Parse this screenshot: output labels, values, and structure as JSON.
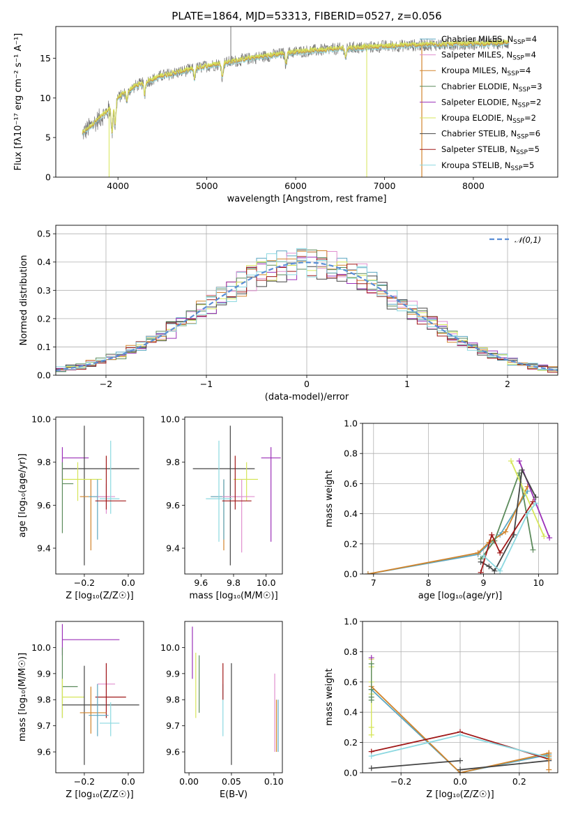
{
  "figure": {
    "title": "PLATE=1864, MJD=53313, FIBERID=0527, z=0.056"
  },
  "legend_entries": [
    {
      "label": "Chabrier MILES, N",
      "sub": "SSP",
      "eq": "=4",
      "color": "#5aa6c0"
    },
    {
      "label": "Salpeter MILES, N",
      "sub": "SSP",
      "eq": "=4",
      "color": "#e08fcf"
    },
    {
      "label": "Kroupa MILES, N",
      "sub": "SSP",
      "eq": "=4",
      "color": "#d2842c"
    },
    {
      "label": "Chabrier ELODIE, N",
      "sub": "SSP",
      "eq": "=3",
      "color": "#5b8a5b"
    },
    {
      "label": "Salpeter ELODIE, N",
      "sub": "SSP",
      "eq": "=2",
      "color": "#9b30b8"
    },
    {
      "label": "Kroupa ELODIE, N",
      "sub": "SSP",
      "eq": "=2",
      "color": "#d6e65a"
    },
    {
      "label": "Chabrier STELIB, N",
      "sub": "SSP",
      "eq": "=6",
      "color": "#444444"
    },
    {
      "label": "Salpeter STELIB, N",
      "sub": "SSP",
      "eq": "=5",
      "color": "#a01818"
    },
    {
      "label": "Kroupa STELIB, N",
      "sub": "SSP",
      "eq": "=5",
      "color": "#8bd8e0"
    }
  ],
  "chart_data": [
    {
      "id": "spectrum",
      "type": "line",
      "xlabel": "wavelength [Angstrom, rest frame]",
      "ylabel": "Flux [fλ10⁻¹⁷ erg cm⁻² s⁻¹ A⁻¹]",
      "xlim": [
        3300,
        8950
      ],
      "ylim": [
        0,
        19
      ],
      "xticks": [
        4000,
        5000,
        6000,
        7000,
        8000
      ],
      "yticks": [
        0,
        5,
        10,
        15
      ],
      "data_range": [
        3600,
        8400
      ],
      "data_color": "#777777",
      "model_colors": [
        "#8bd8e0",
        "#d2842c",
        "#d6e65a"
      ],
      "continuum": [
        [
          3600,
          5.5
        ],
        [
          3700,
          6.5
        ],
        [
          3800,
          7.5
        ],
        [
          3900,
          8.5
        ],
        [
          4000,
          10.0
        ],
        [
          4200,
          11.5
        ],
        [
          4500,
          12.8
        ],
        [
          5000,
          14.0
        ],
        [
          5500,
          15.0
        ],
        [
          6000,
          15.8
        ],
        [
          6500,
          16.2
        ],
        [
          7000,
          16.5
        ],
        [
          7500,
          16.7
        ],
        [
          8000,
          16.8
        ],
        [
          8400,
          16.9
        ]
      ],
      "grid": false
    },
    {
      "id": "residuals",
      "type": "step",
      "xlabel": "(data-model)/error",
      "ylabel": "Normed distribution",
      "xlim": [
        -2.5,
        2.5
      ],
      "ylim": [
        0,
        0.53
      ],
      "xticks": [
        -2,
        -1,
        0,
        1,
        2
      ],
      "yticks": [
        0.0,
        0.1,
        0.2,
        0.3,
        0.4,
        0.5
      ],
      "bin_width": 0.1,
      "reference": {
        "name": "𝒩(0,1)",
        "color": "#5b8ed6"
      },
      "legend": "top-right",
      "grid": true
    },
    {
      "id": "z_age",
      "type": "errorbar",
      "xlabel": "Z [log₁₀(Z/Z☉)]",
      "ylabel": "age  [log₁₀(age/yr)]",
      "xlim": [
        -0.33,
        0.07
      ],
      "ylim": [
        9.28,
        10.01
      ],
      "xticks": [
        -0.2,
        0.0
      ],
      "yticks": [
        9.4,
        9.6,
        9.8,
        10.0
      ],
      "points": [
        {
          "x": -0.3,
          "xe": [
            0.0,
            0.12
          ],
          "y": 9.82,
          "ye": [
            0.1,
            0.05
          ],
          "color": "#9b30b8"
        },
        {
          "x": -0.2,
          "xe": [
            0.1,
            0.25
          ],
          "y": 9.77,
          "ye": [
            0.45,
            0.2
          ],
          "color": "#444444"
        },
        {
          "x": -0.23,
          "xe": [
            0.07,
            0.11
          ],
          "y": 9.72,
          "ye": [
            0.1,
            0.08
          ],
          "color": "#d6e65a"
        },
        {
          "x": -0.3,
          "xe": [
            0.0,
            0.05
          ],
          "y": 9.7,
          "ye": [
            0.23,
            0.1
          ],
          "color": "#5b8a5b"
        },
        {
          "x": -0.17,
          "xe": [
            0.05,
            0.07
          ],
          "y": 9.64,
          "ye": [
            0.25,
            0.08
          ],
          "color": "#d2842c"
        },
        {
          "x": -0.14,
          "xe": [
            0.04,
            0.05
          ],
          "y": 9.64,
          "ye": [
            0.2,
            0.08
          ],
          "color": "#5aa6c0"
        },
        {
          "x": -0.1,
          "xe": [
            0.04,
            0.04
          ],
          "y": 9.64,
          "ye": [
            0.08,
            0.06
          ],
          "color": "#e08fcf"
        },
        {
          "x": -0.08,
          "xe": [
            0.05,
            0.04
          ],
          "y": 9.63,
          "ye": [
            0.07,
            0.27
          ],
          "color": "#8bd8e0"
        },
        {
          "x": -0.1,
          "xe": [
            0.05,
            0.09
          ],
          "y": 9.62,
          "ye": [
            0.04,
            0.21
          ],
          "color": "#a01818"
        }
      ]
    },
    {
      "id": "mass_age",
      "type": "errorbar",
      "xlabel": "mass [log₁₀(M/M☉)]",
      "ylabel": "",
      "xlim": [
        9.5,
        10.1
      ],
      "ylim": [
        9.28,
        10.01
      ],
      "xticks": [
        9.6,
        9.8,
        10.0
      ],
      "yticks": [
        9.4,
        9.6,
        9.8,
        10.0
      ],
      "points": [
        {
          "x": 10.03,
          "xe": [
            0.06,
            0.06
          ],
          "y": 9.82,
          "ye": [
            0.39,
            0.05
          ],
          "color": "#9b30b8"
        },
        {
          "x": 9.78,
          "xe": [
            0.23,
            0.15
          ],
          "y": 9.77,
          "ye": [
            0.45,
            0.2
          ],
          "color": "#444444"
        },
        {
          "x": 9.88,
          "xe": [
            0.08,
            0.07
          ],
          "y": 9.72,
          "ye": [
            0.1,
            0.08
          ],
          "color": "#d6e65a"
        },
        {
          "x": 9.74,
          "xe": [
            0.08,
            0.1
          ],
          "y": 9.64,
          "ye": [
            0.25,
            0.08
          ],
          "color": "#d2842c"
        },
        {
          "x": 9.74,
          "xe": [
            0.08,
            0.12
          ],
          "y": 9.64,
          "ye": [
            0.2,
            0.08
          ],
          "color": "#5aa6c0"
        },
        {
          "x": 9.85,
          "xe": [
            0.12,
            0.08
          ],
          "y": 9.64,
          "ye": [
            0.26,
            0.08
          ],
          "color": "#e08fcf"
        },
        {
          "x": 9.71,
          "xe": [
            0.08,
            0.08
          ],
          "y": 9.63,
          "ye": [
            0.2,
            0.27
          ],
          "color": "#8bd8e0"
        },
        {
          "x": 9.81,
          "xe": [
            0.08,
            0.1
          ],
          "y": 9.62,
          "ye": [
            0.04,
            0.21
          ],
          "color": "#a01818"
        }
      ]
    },
    {
      "id": "age_massweight",
      "type": "line",
      "xlabel": "age  [log₁₀(age/yr)]",
      "ylabel": "mass weight",
      "xlim": [
        6.8,
        10.35
      ],
      "ylim": [
        0,
        1.0
      ],
      "xticks": [
        7,
        8,
        9,
        10
      ],
      "yticks": [
        0.0,
        0.2,
        0.4,
        0.6,
        0.8,
        1.0
      ],
      "grid": true,
      "series": [
        {
          "color": "#5aa6c0",
          "points": [
            [
              6.9,
              0.0
            ],
            [
              8.9,
              0.13
            ],
            [
              9.1,
              0.2
            ],
            [
              9.3,
              0.26
            ],
            [
              9.8,
              0.55
            ]
          ]
        },
        {
          "color": "#d2842c",
          "points": [
            [
              6.9,
              0.0
            ],
            [
              8.9,
              0.14
            ],
            [
              9.1,
              0.21
            ],
            [
              9.4,
              0.28
            ],
            [
              9.8,
              0.58
            ]
          ]
        },
        {
          "color": "#5b8a5b",
          "points": [
            [
              8.95,
              0.1
            ],
            [
              9.2,
              0.22
            ],
            [
              9.65,
              0.67
            ],
            [
              9.9,
              0.16
            ]
          ]
        },
        {
          "color": "#9b30b8",
          "points": [
            [
              9.65,
              0.75
            ],
            [
              10.2,
              0.24
            ]
          ]
        },
        {
          "color": "#d6e65a",
          "points": [
            [
              9.5,
              0.75
            ],
            [
              10.1,
              0.25
            ]
          ]
        },
        {
          "color": "#444444",
          "points": [
            [
              8.95,
              0.08
            ],
            [
              9.1,
              0.05
            ],
            [
              9.2,
              0.02
            ],
            [
              9.55,
              0.26
            ],
            [
              9.7,
              0.69
            ],
            [
              9.95,
              0.51
            ]
          ]
        },
        {
          "color": "#a01818",
          "points": [
            [
              8.95,
              0.01
            ],
            [
              9.15,
              0.26
            ],
            [
              9.3,
              0.14
            ],
            [
              9.9,
              0.48
            ]
          ]
        },
        {
          "color": "#8bd8e0",
          "points": [
            [
              9.0,
              0.12
            ],
            [
              9.3,
              0.02
            ],
            [
              9.8,
              0.4
            ],
            [
              9.95,
              0.47
            ]
          ]
        }
      ]
    },
    {
      "id": "z_mass",
      "type": "errorbar",
      "xlabel": "Z [log₁₀(Z/Z☉)]",
      "ylabel": "mass [log₁₀(M/M☉)]",
      "xlim": [
        -0.33,
        0.07
      ],
      "ylim": [
        9.52,
        10.1
      ],
      "xticks": [
        -0.2,
        0.0
      ],
      "yticks": [
        9.6,
        9.7,
        9.8,
        9.9,
        10.0
      ],
      "points": [
        {
          "x": -0.3,
          "xe": [
            0.0,
            0.26
          ],
          "y": 10.03,
          "ye": [
            0.06,
            0.06
          ],
          "color": "#9b30b8"
        },
        {
          "x": -0.3,
          "xe": [
            0.0,
            0.07
          ],
          "y": 9.85,
          "ye": [
            0.12,
            0.15
          ],
          "color": "#5b8a5b"
        },
        {
          "x": -0.3,
          "xe": [
            0.0,
            0.1
          ],
          "y": 9.81,
          "ye": [
            0.08,
            0.07
          ],
          "color": "#d6e65a"
        },
        {
          "x": -0.2,
          "xe": [
            0.1,
            0.25
          ],
          "y": 9.78,
          "ye": [
            0.23,
            0.15
          ],
          "color": "#444444"
        },
        {
          "x": -0.1,
          "xe": [
            0.04,
            0.04
          ],
          "y": 9.86,
          "ye": [
            0.12,
            0.08
          ],
          "color": "#e08fcf"
        },
        {
          "x": -0.1,
          "xe": [
            0.05,
            0.09
          ],
          "y": 9.81,
          "ye": [
            0.08,
            0.13
          ],
          "color": "#a01818"
        },
        {
          "x": -0.17,
          "xe": [
            0.05,
            0.07
          ],
          "y": 9.75,
          "ye": [
            0.08,
            0.1
          ],
          "color": "#d2842c"
        },
        {
          "x": -0.14,
          "xe": [
            0.04,
            0.05
          ],
          "y": 9.74,
          "ye": [
            0.08,
            0.12
          ],
          "color": "#5aa6c0"
        },
        {
          "x": -0.08,
          "xe": [
            0.05,
            0.04
          ],
          "y": 9.71,
          "ye": [
            0.05,
            0.08
          ],
          "color": "#8bd8e0"
        }
      ]
    },
    {
      "id": "ebv_mass",
      "type": "errorbar",
      "xlabel": "E(B-V)",
      "ylabel": "",
      "xlim": [
        -0.005,
        0.11
      ],
      "ylim": [
        9.52,
        10.1
      ],
      "xticks": [
        0.0,
        0.05,
        0.1
      ],
      "yticks": [
        9.6,
        9.7,
        9.8,
        9.9,
        10.0
      ],
      "points": [
        {
          "x": 0.004,
          "xe": [
            0,
            0
          ],
          "y": 9.98,
          "ye": [
            0.1,
            0.1
          ],
          "color": "#9b30b8"
        },
        {
          "x": 0.008,
          "xe": [
            0,
            0
          ],
          "y": 9.85,
          "ye": [
            0.12,
            0.13
          ],
          "color": "#d6e65a"
        },
        {
          "x": 0.012,
          "xe": [
            0,
            0
          ],
          "y": 9.85,
          "ye": [
            0.1,
            0.12
          ],
          "color": "#5b8a5b"
        },
        {
          "x": 0.04,
          "xe": [
            0,
            0
          ],
          "y": 9.76,
          "ye": [
            0.1,
            0.1
          ],
          "color": "#8bd8e0"
        },
        {
          "x": 0.04,
          "xe": [
            0,
            0
          ],
          "y": 9.86,
          "ye": [
            0.06,
            0.08
          ],
          "color": "#a01818"
        },
        {
          "x": 0.05,
          "xe": [
            0,
            0
          ],
          "y": 9.75,
          "ye": [
            0.2,
            0.19
          ],
          "color": "#444444"
        },
        {
          "x": 0.101,
          "xe": [
            0,
            0
          ],
          "y": 9.75,
          "ye": [
            0.15,
            0.15
          ],
          "color": "#e08fcf"
        },
        {
          "x": 0.103,
          "xe": [
            0,
            0
          ],
          "y": 9.7,
          "ye": [
            0.1,
            0.1
          ],
          "color": "#d2842c"
        },
        {
          "x": 0.105,
          "xe": [
            0,
            0
          ],
          "y": 9.7,
          "ye": [
            0.1,
            0.1
          ],
          "color": "#5aa6c0"
        }
      ]
    },
    {
      "id": "z_massweight",
      "type": "line",
      "xlabel": "Z [log₁₀(Z/Z☉)]",
      "ylabel": "mass weight",
      "xlim": [
        -0.33,
        0.33
      ],
      "ylim": [
        0,
        1.0
      ],
      "xticks": [
        -0.2,
        0.0,
        0.2
      ],
      "yticks": [
        0.0,
        0.2,
        0.4,
        0.6,
        0.8,
        1.0
      ],
      "grid": true,
      "series": [
        {
          "color": "#5aa6c0",
          "points": [
            [
              -0.3,
              0.55
            ],
            [
              0.0,
              0.0
            ],
            [
              0.3,
              0.12
            ]
          ]
        },
        {
          "color": "#d2842c",
          "points": [
            [
              -0.3,
              0.57
            ],
            [
              0.0,
              0.0
            ],
            [
              0.3,
              0.13
            ]
          ]
        },
        {
          "color": "#a01818",
          "points": [
            [
              -0.3,
              0.14
            ],
            [
              0.0,
              0.27
            ],
            [
              0.3,
              0.09
            ]
          ]
        },
        {
          "color": "#8bd8e0",
          "points": [
            [
              -0.3,
              0.11
            ],
            [
              0.0,
              0.25
            ],
            [
              0.3,
              0.1
            ]
          ]
        },
        {
          "color": "#444444",
          "points": [
            [
              -0.3,
              0.03
            ],
            [
              0.0,
              0.08
            ]
          ]
        },
        {
          "color": "#444444",
          "points": [
            [
              0.0,
              0.02
            ],
            [
              0.3,
              0.08
            ]
          ]
        }
      ],
      "markers": [
        {
          "x": -0.3,
          "ys": [
            0.75,
            0.7,
            0.6,
            0.52,
            0.3,
            0.25
          ],
          "color": "#d6e65a"
        },
        {
          "x": -0.3,
          "ys": [
            0.72,
            0.55,
            0.5,
            0.48
          ],
          "color": "#5b8a5b"
        },
        {
          "x": -0.3,
          "ys": [
            0.76
          ],
          "color": "#9b30b8"
        },
        {
          "x": 0.3,
          "ys": [
            0.13,
            0.11,
            0.02,
            0.09
          ],
          "color": "#d2842c"
        }
      ]
    }
  ]
}
